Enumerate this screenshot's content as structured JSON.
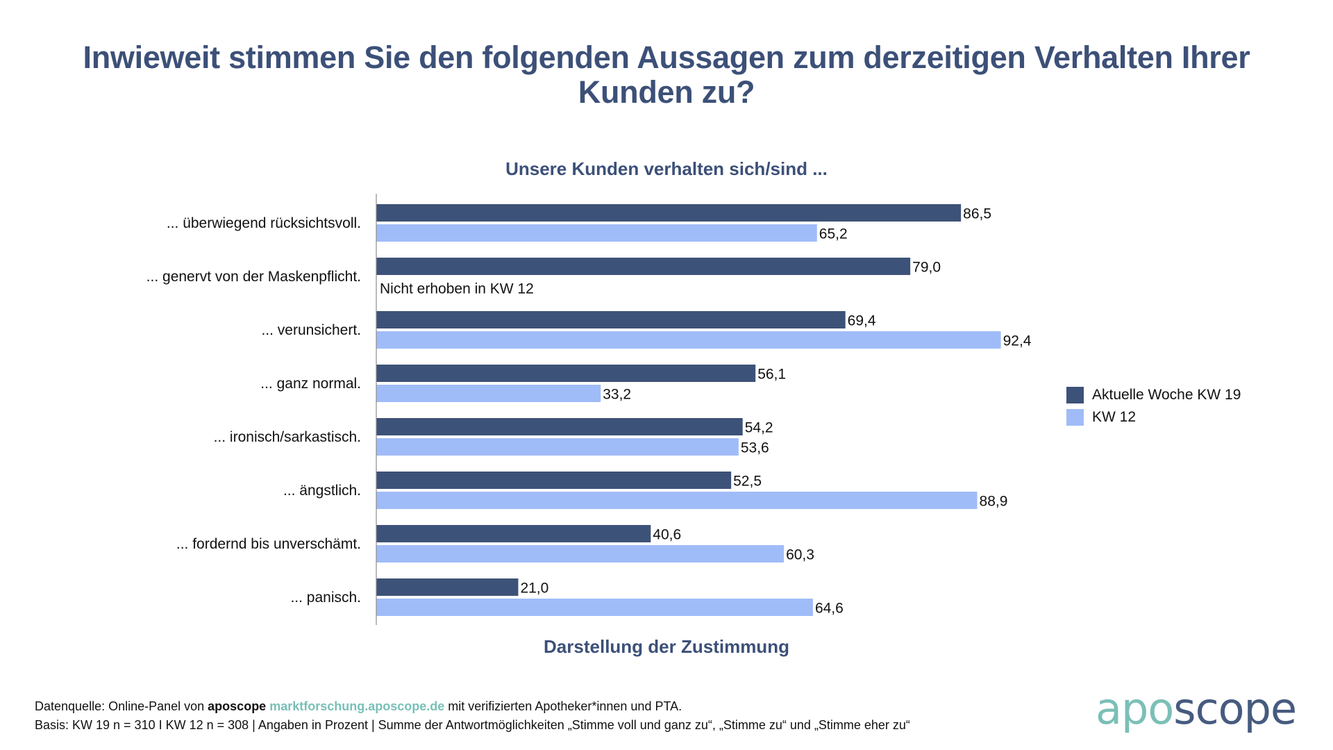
{
  "header": {
    "title_line1": "Inwieweit stimmen Sie den folgenden Aussagen zum derzeitigen Verhalten Ihrer",
    "title_line2": "Kunden zu?"
  },
  "chart_data": {
    "type": "bar",
    "orientation": "horizontal",
    "title": "Inwieweit stimmen Sie den folgenden Aussagen zum derzeitigen Verhalten Ihrer Kunden zu?",
    "subtitle": "Unsere Kunden verhalten sich/sind ...",
    "xlabel": "Darstellung der Zustimmung",
    "ylabel": "",
    "xlim": [
      0,
      100
    ],
    "grid": false,
    "legend_position": "right",
    "categories": [
      "... überwiegend rücksichtsvoll.",
      "... genervt von der Maskenpflicht.",
      "... verunsichert.",
      "... ganz normal.",
      "... ironisch/sarkastisch.",
      "... ängstlich.",
      "... fordernd bis unverschämt.",
      "... panisch."
    ],
    "series": [
      {
        "name": "Aktuelle Woche KW 19",
        "color": "#3d5278",
        "values": [
          86.5,
          79.0,
          69.4,
          56.1,
          54.2,
          52.5,
          40.6,
          21.0
        ],
        "labels": [
          "86,5",
          "79,0",
          "69,4",
          "56,1",
          "54,2",
          "52,5",
          "40,6",
          "21,0"
        ]
      },
      {
        "name": "KW 12",
        "color": "#a0bcf8",
        "values": [
          65.2,
          null,
          92.4,
          33.2,
          53.6,
          88.9,
          60.3,
          64.6
        ],
        "labels": [
          "65,2",
          "Nicht erhoben in KW 12",
          "92,4",
          "33,2",
          "53,6",
          "88,9",
          "60,3",
          "64,6"
        ]
      }
    ],
    "annotations": [
      "Nicht erhoben in KW 12"
    ]
  },
  "footer": {
    "line1_prefix": "Datenquelle: Online-Panel von ",
    "line1_brand": "aposcope",
    "line1_link": "marktforschung.aposcope.de",
    "line1_suffix": " mit verifizierten Apotheker*innen und PTA.",
    "line2": "Basis: KW 19 n = 310 I KW 12 n = 308 | Angaben in Prozent | Summe der Antwortmöglichkeiten „Stimme voll und ganz zu“, „Stimme zu“ und „Stimme eher zu“"
  },
  "logo": {
    "part1": "apo",
    "part2": "scope"
  }
}
